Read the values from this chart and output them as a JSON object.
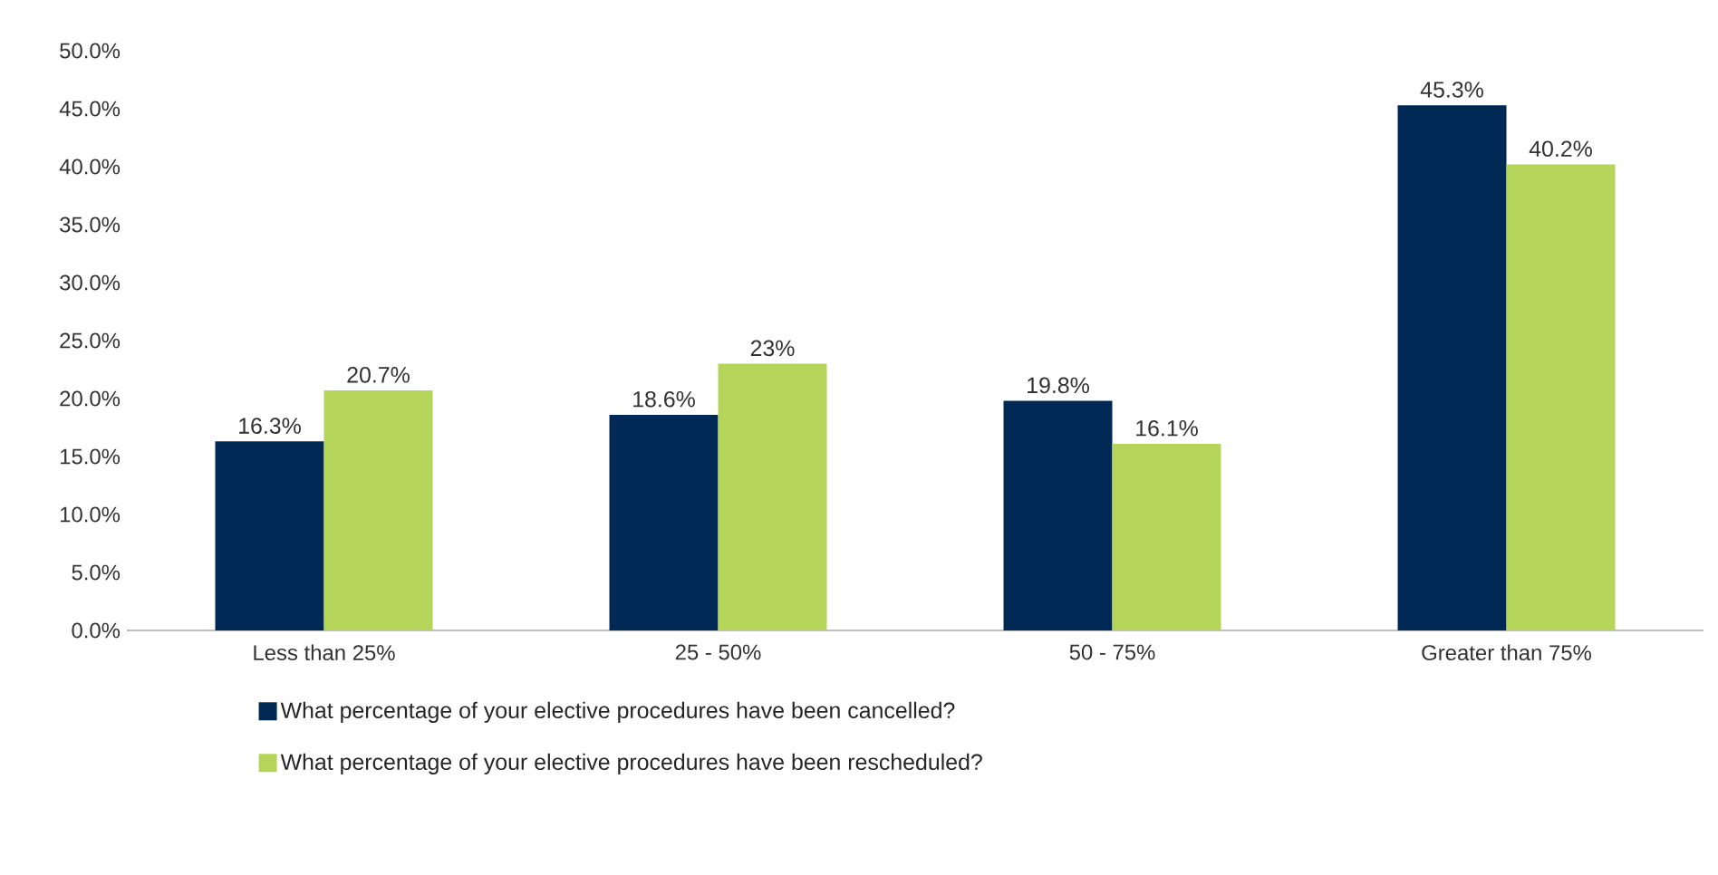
{
  "chart_data": {
    "type": "bar",
    "categories": [
      "Less than 25%",
      "25 - 50%",
      "50 - 75%",
      "Greater than 75%"
    ],
    "series": [
      {
        "name": "What percentage of your elective procedures have been cancelled?",
        "color": "#002855",
        "values": [
          16.3,
          18.6,
          19.8,
          45.3
        ],
        "value_labels": [
          "16.3%",
          "18.6%",
          "19.8%",
          "45.3%"
        ]
      },
      {
        "name": "What percentage of your elective procedures have been rescheduled?",
        "color": "#b5d55a",
        "values": [
          20.7,
          23,
          16.1,
          40.2
        ],
        "value_labels": [
          "20.7%",
          "23%",
          "16.1%",
          "40.2%"
        ]
      }
    ],
    "ylim": [
      0,
      50
    ],
    "yticks": [
      {
        "value": 0,
        "label": "0.0%"
      },
      {
        "value": 5,
        "label": "5.0%"
      },
      {
        "value": 10,
        "label": "10.0%"
      },
      {
        "value": 15,
        "label": "15.0%"
      },
      {
        "value": 20,
        "label": "20.0%"
      },
      {
        "value": 25,
        "label": "25.0%"
      },
      {
        "value": 30,
        "label": "30.0%"
      },
      {
        "value": 35,
        "label": "35.0%"
      },
      {
        "value": 40,
        "label": "40.0%"
      },
      {
        "value": 45,
        "label": "45.0%"
      },
      {
        "value": 50,
        "label": "50.0%"
      }
    ],
    "legend": "bottom"
  }
}
